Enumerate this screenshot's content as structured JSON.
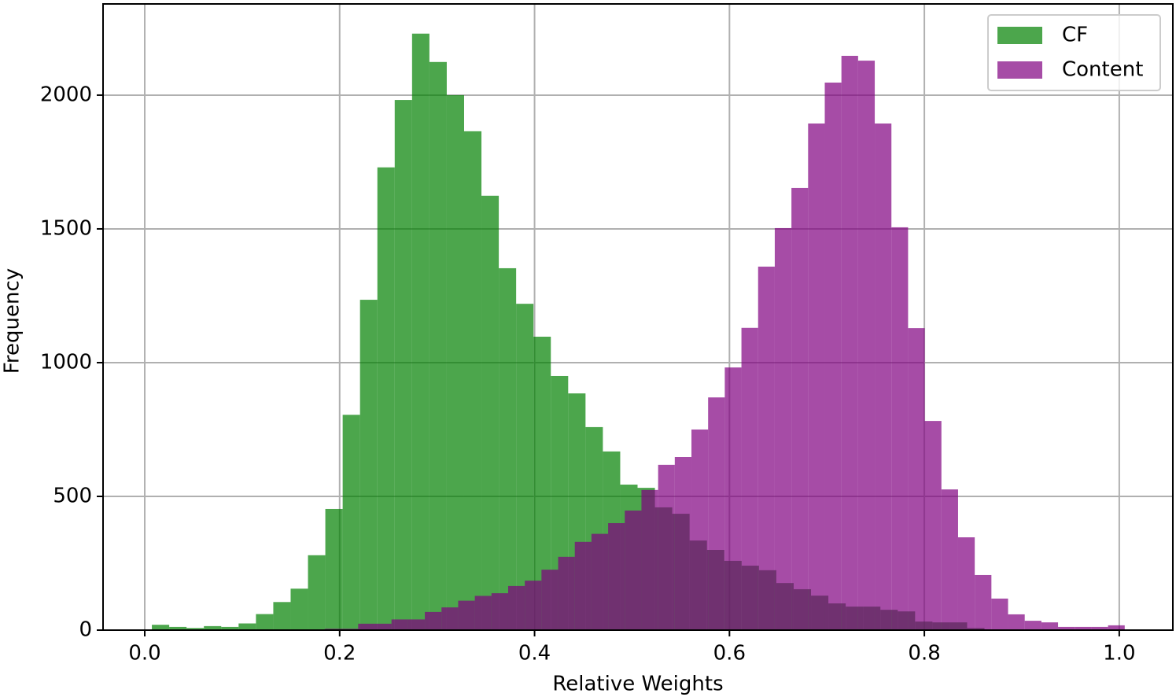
{
  "chart_data": {
    "type": "histogram",
    "xlabel": "Relative Weights",
    "ylabel": "Frequency",
    "xlim": [
      -0.0428,
      1.055
    ],
    "ylim": [
      0,
      2341
    ],
    "xticks": [
      {
        "value": 0,
        "label": "0.0"
      },
      0.2,
      0.4,
      0.6,
      0.8,
      {
        "value": 1,
        "label": "1.0"
      }
    ],
    "yticks": [
      0,
      500,
      1000,
      1500,
      2000
    ],
    "grid": true,
    "legend": "upper right",
    "alpha": 0.7,
    "series": [
      {
        "name": "CF",
        "color": "green",
        "bins": [
          0.0073,
          0.0251,
          0.0429,
          0.0607,
          0.0785,
          0.0963,
          0.1141,
          0.1319,
          0.1497,
          0.1675,
          0.1853,
          0.2031,
          0.2209,
          0.2387,
          0.2565,
          0.2743,
          0.2921,
          0.3099,
          0.3277,
          0.3455,
          0.3633,
          0.3811,
          0.3989,
          0.4167,
          0.4345,
          0.4523,
          0.4701,
          0.4879,
          0.5057,
          0.5235,
          0.5413,
          0.5591,
          0.5769,
          0.5947,
          0.6125,
          0.6303,
          0.6481,
          0.6659,
          0.6837,
          0.7015,
          0.7193,
          0.7371,
          0.7549,
          0.7727,
          0.7905,
          0.8083,
          0.8261,
          0.8439,
          0.8617
        ],
        "values": [
          20,
          12,
          8,
          15,
          12,
          25,
          60,
          105,
          155,
          280,
          453,
          805,
          1235,
          1730,
          1982,
          2230,
          2124,
          2000,
          1865,
          1624,
          1353,
          1220,
          1097,
          950,
          885,
          759,
          668,
          544,
          532,
          459,
          435,
          335,
          300,
          259,
          241,
          224,
          176,
          153,
          129,
          100,
          88,
          88,
          76,
          70,
          32,
          29,
          29,
          8
        ]
      },
      {
        "name": "Content",
        "color": "purple",
        "bins": [
          0.1848,
          0.2019,
          0.219,
          0.2361,
          0.2532,
          0.2703,
          0.2874,
          0.3045,
          0.3216,
          0.3387,
          0.3558,
          0.3729,
          0.39,
          0.4071,
          0.4242,
          0.4413,
          0.4584,
          0.4755,
          0.4926,
          0.5097,
          0.5268,
          0.5439,
          0.561,
          0.5781,
          0.5952,
          0.6123,
          0.6294,
          0.6465,
          0.6636,
          0.6807,
          0.6978,
          0.7149,
          0.732,
          0.7491,
          0.7662,
          0.7833,
          0.8004,
          0.8175,
          0.8346,
          0.8517,
          0.8688,
          0.8859,
          0.903,
          0.9201,
          0.9372,
          0.9543,
          0.9714,
          0.9885,
          1.0056
        ],
        "values": [
          5,
          5,
          24,
          24,
          40,
          40,
          68,
          85,
          110,
          128,
          138,
          165,
          185,
          226,
          274,
          330,
          360,
          400,
          447,
          524,
          618,
          647,
          750,
          870,
          982,
          1130,
          1359,
          1503,
          1653,
          1894,
          2047,
          2147,
          2129,
          1894,
          1506,
          1129,
          782,
          526,
          347,
          206,
          118,
          59,
          35,
          29,
          12,
          12,
          12,
          18
        ]
      }
    ]
  }
}
